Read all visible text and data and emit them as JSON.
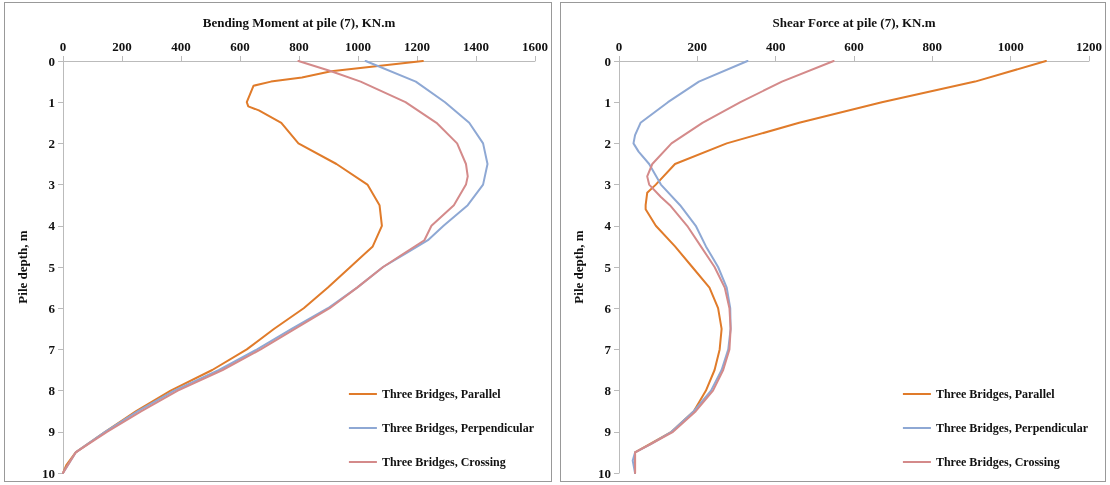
{
  "chart_data": [
    {
      "type": "line",
      "xlabel": "Bending Moment at pile (7), KN.m",
      "ylabel": "Pile depth, m",
      "xlim": [
        0,
        1600
      ],
      "xticks": [
        0,
        200,
        400,
        600,
        800,
        1000,
        1200,
        1400,
        1600
      ],
      "ylim": [
        10,
        0
      ],
      "yticks": [
        0,
        1,
        2,
        3,
        4,
        5,
        6,
        7,
        8,
        9,
        10
      ],
      "grid": false,
      "legend": "bottom right",
      "marker": "none",
      "line_style": "solid",
      "series": [
        {
          "name": "Three Bridges, Parallel",
          "color": "#e07b2a",
          "x": [
            1220,
            909,
            810,
            705,
            646,
            623,
            628,
            664,
            740,
            798,
            927,
            1032,
            1073,
            1081,
            1050,
            974,
            898,
            816,
            716,
            623,
            506,
            365,
            248,
            143,
            43,
            12,
            0
          ],
          "values": [
            0,
            0.25,
            0.4,
            0.5,
            0.6,
            1,
            1.1,
            1.2,
            1.5,
            2,
            2.5,
            3,
            3.5,
            4,
            4.5,
            5,
            5.5,
            6,
            6.5,
            7,
            7.5,
            8,
            8.5,
            9,
            9.5,
            9.8,
            10
          ]
        },
        {
          "name": "Three Bridges, Perpendicular",
          "color": "#8ea8d4",
          "x": [
            1026,
            1196,
            1295,
            1377,
            1424,
            1439,
            1424,
            1372,
            1290,
            1237,
            1085,
            997,
            898,
            775,
            658,
            529,
            377,
            254,
            143,
            43,
            0
          ],
          "values": [
            0,
            0.5,
            1,
            1.5,
            2,
            2.5,
            3,
            3.5,
            4,
            4.35,
            5,
            5.5,
            6,
            6.5,
            7,
            7.5,
            8,
            8.5,
            9,
            9.5,
            10
          ]
        },
        {
          "name": "Three Bridges, Crossing",
          "color": "#d48a8a",
          "x": [
            798,
            909,
            1009,
            1161,
            1266,
            1336,
            1366,
            1372,
            1366,
            1325,
            1249,
            1225,
            1085,
            997,
            904,
            786,
            670,
            541,
            389,
            266,
            149,
            43,
            0
          ],
          "values": [
            0,
            0.25,
            0.5,
            1,
            1.5,
            2,
            2.5,
            2.8,
            3,
            3.5,
            4,
            4.35,
            5,
            5.5,
            6,
            6.5,
            7,
            7.5,
            8,
            8.5,
            9,
            9.5,
            10
          ]
        }
      ]
    },
    {
      "type": "line",
      "xlabel": "Shear Force at pile (7), KN.m",
      "ylabel": "Pile depth, m",
      "xlim": [
        0,
        1200
      ],
      "xticks": [
        0,
        200,
        400,
        600,
        800,
        1000,
        1200
      ],
      "ylim": [
        10,
        0
      ],
      "yticks": [
        0,
        1,
        2,
        3,
        4,
        5,
        6,
        7,
        8,
        9,
        10
      ],
      "grid": false,
      "legend": "bottom right",
      "marker": "none",
      "line_style": "solid",
      "series": [
        {
          "name": "Three Bridges, Parallel",
          "color": "#e07b2a",
          "x": [
            1090,
            909,
            671,
            460,
            275,
            143,
            94,
            72,
            68,
            68,
            94,
            143,
            187,
            231,
            253,
            262,
            257,
            244,
            222,
            191,
            134,
            41,
            41
          ],
          "values": [
            0,
            0.5,
            1,
            1.5,
            2,
            2.5,
            3,
            3.2,
            3.5,
            3.6,
            4,
            4.5,
            5,
            5.5,
            6,
            6.5,
            7,
            7.5,
            8,
            8.5,
            9,
            9.5,
            10
          ]
        },
        {
          "name": "Three Bridges, Perpendicular",
          "color": "#8ea8d4",
          "x": [
            328,
            204,
            125,
            55,
            41,
            37,
            50,
            77,
            107,
            156,
            196,
            222,
            253,
            275,
            284,
            285,
            279,
            262,
            235,
            191,
            134,
            81,
            41,
            35,
            41
          ],
          "values": [
            0,
            0.5,
            1,
            1.5,
            1.8,
            2,
            2.2,
            2.5,
            3,
            3.5,
            4,
            4.5,
            5,
            5.5,
            6,
            6.5,
            7,
            7.5,
            8,
            8.5,
            9,
            9.3,
            9.5,
            9.7,
            10
          ]
        },
        {
          "name": "Three Bridges, Crossing",
          "color": "#d48a8a",
          "x": [
            548,
            416,
            310,
            213,
            134,
            85,
            72,
            77,
            107,
            130,
            174,
            209,
            244,
            270,
            282,
            285,
            282,
            266,
            240,
            196,
            138,
            81,
            41,
            41
          ],
          "values": [
            0,
            0.5,
            1,
            1.5,
            2,
            2.5,
            2.8,
            3,
            3.3,
            3.5,
            4,
            4.5,
            5,
            5.5,
            6,
            6.5,
            7,
            7.5,
            8,
            8.5,
            9,
            9.3,
            9.5,
            10
          ]
        }
      ]
    }
  ]
}
